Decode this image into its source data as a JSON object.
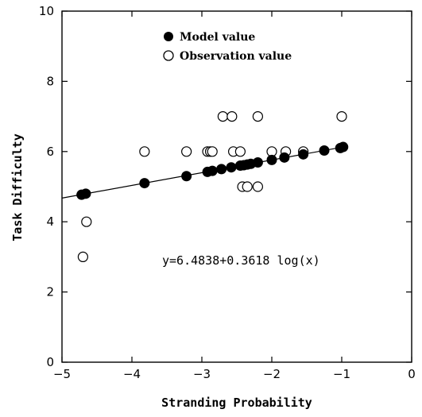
{
  "chart_data": {
    "type": "scatter",
    "xlabel": "Stranding Probability",
    "ylabel": "Task Difficulty",
    "xlim": [
      -5,
      0
    ],
    "ylim": [
      0,
      10
    ],
    "x_ticks": [
      -5,
      -4,
      -3,
      -2,
      -1,
      0
    ],
    "y_ticks": [
      0,
      2,
      4,
      6,
      8,
      10
    ],
    "x_tick_labels": [
      "−5",
      "−4",
      "−3",
      "−2",
      "−1",
      "0"
    ],
    "y_tick_labels": [
      "0",
      "2",
      "4",
      "6",
      "8",
      "10"
    ],
    "grid": false,
    "legend_position": "top-left",
    "annotation": "y=6.4838+0.3618 log(x)",
    "fit_line": {
      "intercept": 6.4838,
      "slope": 0.3618,
      "x_range": [
        -5,
        -1
      ]
    },
    "series": [
      {
        "name": "Model value",
        "marker": "filled-circle",
        "x": [
          -4.72,
          -4.66,
          -3.82,
          -3.22,
          -2.92,
          -2.85,
          -2.72,
          -2.58,
          -2.45,
          -2.4,
          -2.35,
          -2.3,
          -2.2,
          -2.0,
          -1.82,
          -1.55,
          -1.25,
          -1.02,
          -0.98
        ],
        "y": [
          4.77,
          4.8,
          5.1,
          5.3,
          5.42,
          5.45,
          5.5,
          5.55,
          5.6,
          5.61,
          5.63,
          5.65,
          5.69,
          5.76,
          5.83,
          5.92,
          6.03,
          6.1,
          6.13
        ]
      },
      {
        "name": "Observation value",
        "marker": "open-circle",
        "x": [
          -4.7,
          -4.65,
          -3.82,
          -3.22,
          -2.92,
          -2.88,
          -2.85,
          -2.7,
          -2.57,
          -2.55,
          -2.45,
          -2.42,
          -2.35,
          -2.2,
          -2.2,
          -2.0,
          -1.8,
          -1.55,
          -1.0
        ],
        "y": [
          3.0,
          4.0,
          6.0,
          6.0,
          6.0,
          6.0,
          6.0,
          7.0,
          7.0,
          6.0,
          6.0,
          5.0,
          5.0,
          7.0,
          5.0,
          6.0,
          6.0,
          6.0,
          7.0
        ]
      }
    ]
  }
}
